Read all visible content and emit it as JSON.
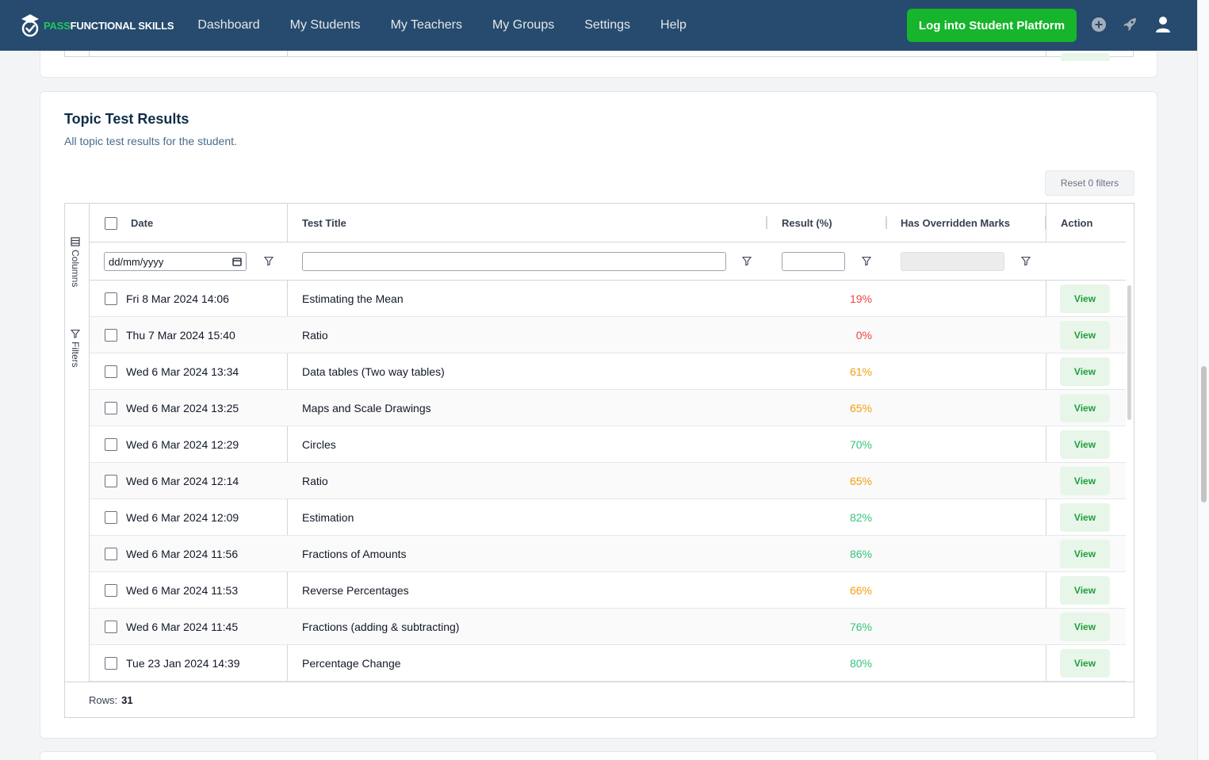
{
  "brand": {
    "pass": "PASS",
    "rest": "FUNCTIONAL SKILLS"
  },
  "nav": {
    "items": [
      "Dashboard",
      "My Students",
      "My Teachers",
      "My Groups",
      "Settings",
      "Help"
    ],
    "login_label": "Log into Student Platform"
  },
  "icons": {
    "add": "plus-circle-icon",
    "rocket": "rocket-icon",
    "user": "user-icon"
  },
  "section": {
    "title": "Topic Test Results",
    "subtitle": "All topic test results for the student.",
    "reset_label": "Reset 0 filters"
  },
  "sidebar": {
    "columns_label": "Columns",
    "filters_label": "Filters"
  },
  "table": {
    "headers": {
      "date": "Date",
      "title": "Test Title",
      "result": "Result (%)",
      "overridden": "Has Overridden Marks",
      "action": "Action"
    },
    "date_placeholder": "dd/mm/yyyy",
    "rows": [
      {
        "date": "Fri 8 Mar 2024 14:06",
        "title": "Estimating the Mean",
        "result": "19%",
        "result_color": "#ef4444"
      },
      {
        "date": "Thu 7 Mar 2024 15:40",
        "title": "Ratio",
        "result": "0%",
        "result_color": "#ef4444"
      },
      {
        "date": "Wed 6 Mar 2024 13:34",
        "title": "Data tables (Two way tables)",
        "result": "61%",
        "result_color": "#f59e0b"
      },
      {
        "date": "Wed 6 Mar 2024 13:25",
        "title": "Maps and Scale Drawings",
        "result": "65%",
        "result_color": "#f59e0b"
      },
      {
        "date": "Wed 6 Mar 2024 12:29",
        "title": "Circles",
        "result": "70%",
        "result_color": "#34c47c"
      },
      {
        "date": "Wed 6 Mar 2024 12:14",
        "title": "Ratio",
        "result": "65%",
        "result_color": "#f59e0b"
      },
      {
        "date": "Wed 6 Mar 2024 12:09",
        "title": "Estimation",
        "result": "82%",
        "result_color": "#34c47c"
      },
      {
        "date": "Wed 6 Mar 2024 11:56",
        "title": "Fractions of Amounts",
        "result": "86%",
        "result_color": "#34c47c"
      },
      {
        "date": "Wed 6 Mar 2024 11:53",
        "title": "Reverse Percentages",
        "result": "66%",
        "result_color": "#f59e0b"
      },
      {
        "date": "Wed 6 Mar 2024 11:45",
        "title": "Fractions (adding & subtracting)",
        "result": "76%",
        "result_color": "#34c47c"
      },
      {
        "date": "Tue 23 Jan 2024 14:39",
        "title": "Percentage Change",
        "result": "80%",
        "result_color": "#34c47c"
      }
    ],
    "view_label": "View",
    "rows_label": "Rows:",
    "rows_count": "31"
  }
}
